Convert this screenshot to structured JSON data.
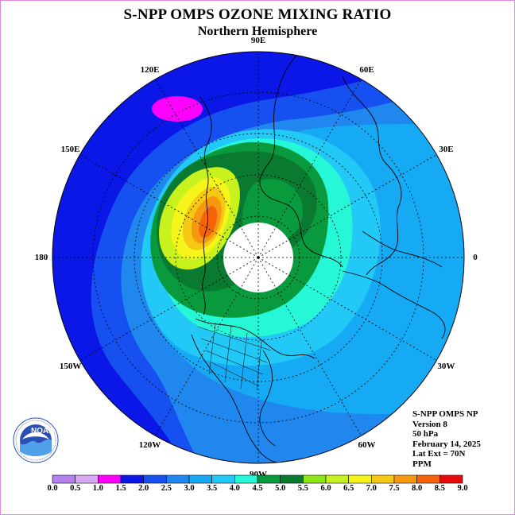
{
  "title": "S-NPP OMPS OZONE MIXING RATIO",
  "subtitle": "Northern Hemisphere",
  "longitude_labels": [
    {
      "text": "90E",
      "lon": 90
    },
    {
      "text": "60E",
      "lon": 60
    },
    {
      "text": "30E",
      "lon": 30
    },
    {
      "text": "0",
      "lon": 0
    },
    {
      "text": "30W",
      "lon": -30
    },
    {
      "text": "60W",
      "lon": -60
    },
    {
      "text": "90W",
      "lon": -90
    },
    {
      "text": "120W",
      "lon": -120
    },
    {
      "text": "150W",
      "lon": -150
    },
    {
      "text": "180",
      "lon": 180
    },
    {
      "text": "150E",
      "lon": 150
    },
    {
      "text": "120E",
      "lon": 120
    }
  ],
  "info": {
    "line1": "S-NPP OMPS NP",
    "line2": "Version 8",
    "line3": "50 hPa",
    "line4": "February 14, 2025",
    "line5": "Lat Ext = 70N",
    "line6": "PPM"
  },
  "logo": {
    "text": "NOAA",
    "name": "noaa-logo"
  },
  "colorbar": {
    "ticks": [
      "0.0",
      "0.5",
      "1.0",
      "1.5",
      "2.0",
      "2.5",
      "3.0",
      "3.5",
      "4.0",
      "4.5",
      "5.0",
      "5.5",
      "6.0",
      "6.5",
      "7.0",
      "7.5",
      "8.0",
      "8.5",
      "9.0"
    ],
    "colors": [
      "#b580f0",
      "#d9a8f5",
      "#ff00ff",
      "#0a17e6",
      "#1650f0",
      "#1f87ee",
      "#15aaf3",
      "#22c9f7",
      "#26f7d6",
      "#0a9a3e",
      "#0a7a30",
      "#8ee619",
      "#c8f21e",
      "#f5f51c",
      "#f5c814",
      "#f59a10",
      "#f5640a",
      "#e60a0a",
      "#7e5c38"
    ]
  },
  "colors": {
    "pink_anomaly": "#ff00ff",
    "deep_blue": "#0a17e6",
    "mid_blue": "#1650f0",
    "blue": "#1f87ee",
    "light_blue": "#15aaf3",
    "cyan": "#22c9f7",
    "aqua": "#26f7d6",
    "green": "#0a9a3e",
    "dark_green": "#0a7a30",
    "yellow_green": "#c8f21e",
    "yellow": "#f5f51c",
    "orange": "#f59a10",
    "red_orange": "#f5640a"
  }
}
